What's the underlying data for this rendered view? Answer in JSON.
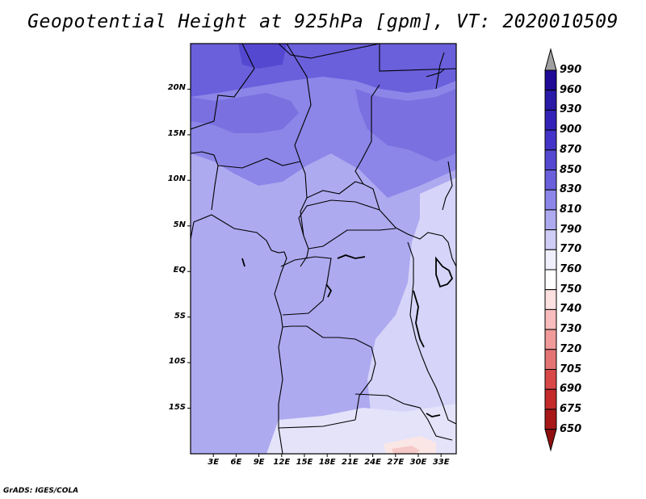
{
  "title": "Geopotential Height at 925hPa [gpm], VT: 2020010509",
  "credit": "GrADS: IGES/COLA",
  "axes": {
    "lat_labels": [
      "20N",
      "15N",
      "10N",
      "5N",
      "EQ",
      "5S",
      "10S",
      "15S"
    ],
    "lat_values": [
      20,
      15,
      10,
      5,
      0,
      -5,
      -10,
      -15
    ],
    "lon_labels": [
      "3E",
      "6E",
      "9E",
      "12E",
      "15E",
      "18E",
      "21E",
      "24E",
      "27E",
      "30E",
      "33E"
    ],
    "lon_values": [
      3,
      6,
      9,
      12,
      15,
      18,
      21,
      24,
      27,
      30,
      33
    ],
    "lat_range": [
      -20,
      25
    ],
    "lon_range": [
      0,
      35
    ]
  },
  "colorbar": {
    "labels": [
      "990",
      "960",
      "930",
      "900",
      "870",
      "850",
      "830",
      "810",
      "790",
      "770",
      "760",
      "750",
      "740",
      "730",
      "720",
      "705",
      "690",
      "675",
      "650"
    ],
    "colors": [
      "#a0a0a0",
      "#1e0a96",
      "#2a1aa8",
      "#3322b8",
      "#4433c8",
      "#5548d0",
      "#6a60dc",
      "#8c86e8",
      "#aeaaf0",
      "#cfcdf6",
      "#f0f0fc",
      "#ffffff",
      "#fde0e0",
      "#f8bcbc",
      "#f09a9a",
      "#e47474",
      "#d84848",
      "#c42a2a",
      "#a81818",
      "#901010"
    ]
  },
  "colors": {
    "frame": "#000000",
    "background": "#ffffff"
  }
}
